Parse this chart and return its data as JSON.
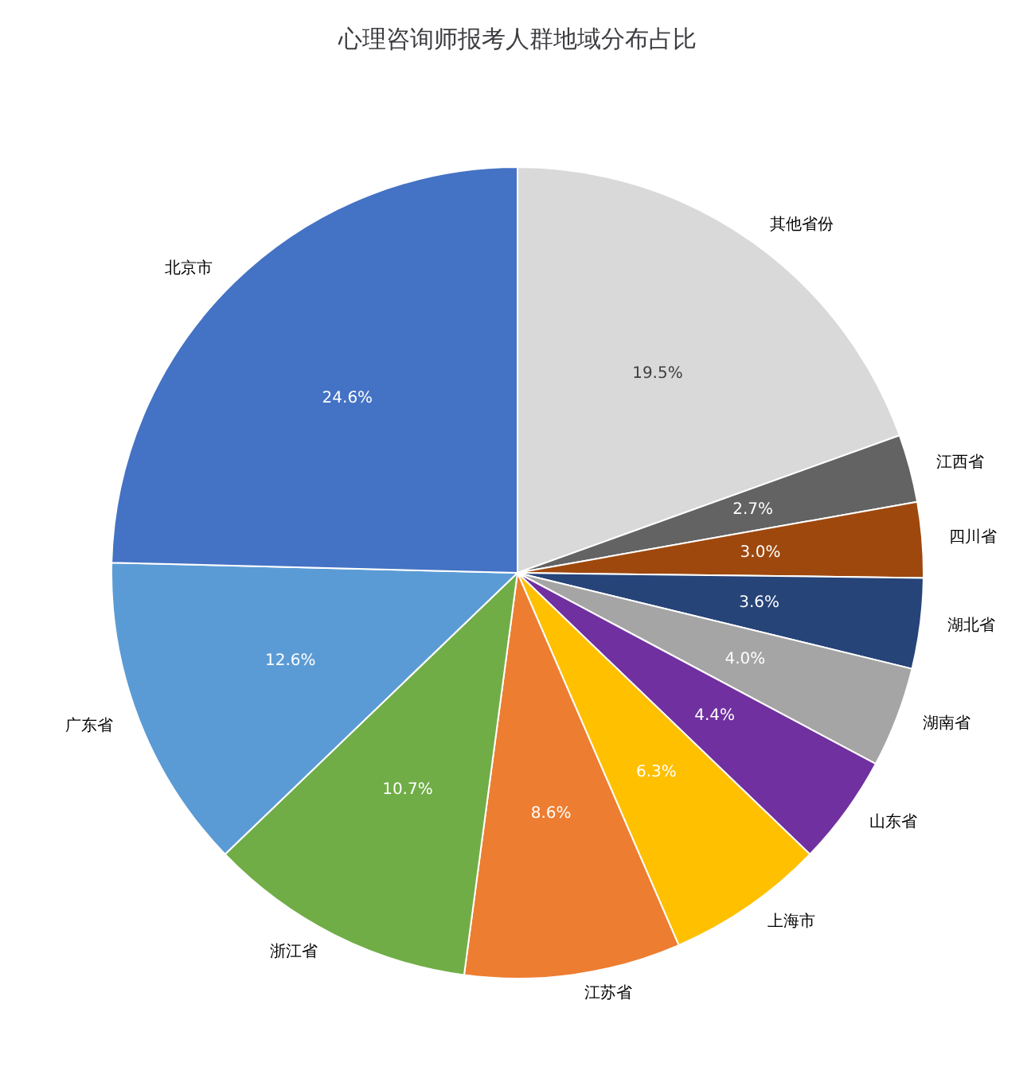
{
  "chart_data": {
    "type": "pie",
    "title": "心理咨询师报考人群地域分布占比",
    "categories": [
      "其他省份",
      "江西省",
      "四川省",
      "湖北省",
      "湖南省",
      "山东省",
      "上海市",
      "江苏省",
      "浙江省",
      "广东省",
      "北京市"
    ],
    "values": [
      19.5,
      2.7,
      3.0,
      3.6,
      4.0,
      4.4,
      6.3,
      8.6,
      10.7,
      12.6,
      24.6
    ],
    "value_labels": [
      "19.5%",
      "2.7%",
      "3.0%",
      "3.6%",
      "4.0%",
      "4.4%",
      "6.3%",
      "8.6%",
      "10.7%",
      "12.6%",
      "24.6%"
    ],
    "colors": [
      "#d9d9d9",
      "#636363",
      "#9e480e",
      "#264478",
      "#a5a5a5",
      "#7030a0",
      "#ffc000",
      "#ed7d31",
      "#70ad47",
      "#5b9bd5",
      "#4472c4"
    ],
    "legend": false
  }
}
